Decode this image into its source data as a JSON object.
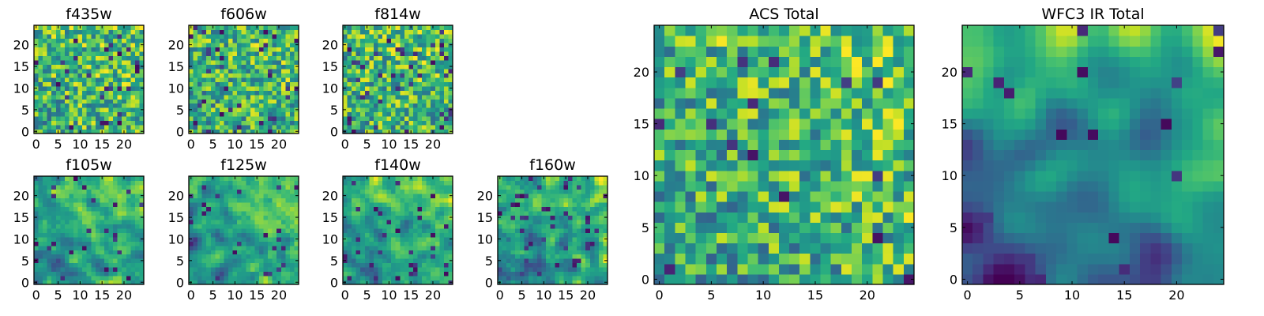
{
  "chart_data": [
    {
      "id": "f435w",
      "type": "heatmap",
      "title": "f435w",
      "group": "ACS",
      "size": 25,
      "x_ticks": [
        "0",
        "5",
        "10",
        "15",
        "20"
      ],
      "y_ticks": [
        "0",
        "5",
        "10",
        "15",
        "20"
      ],
      "value_range": [
        0,
        1
      ],
      "pattern": "random-noise",
      "noise_scale": "fine",
      "mean_level": 0.68,
      "gradient_to_upper_right": 0.05,
      "dark_pixel_rate": 0.04,
      "seed": 435
    },
    {
      "id": "f606w",
      "type": "heatmap",
      "title": "f606w",
      "group": "ACS",
      "size": 25,
      "x_ticks": [
        "0",
        "5",
        "10",
        "15",
        "20"
      ],
      "y_ticks": [
        "0",
        "5",
        "10",
        "15",
        "20"
      ],
      "value_range": [
        0,
        1
      ],
      "pattern": "random-noise",
      "noise_scale": "fine",
      "mean_level": 0.66,
      "gradient_to_upper_right": 0.06,
      "dark_pixel_rate": 0.05,
      "seed": 606
    },
    {
      "id": "f814w",
      "type": "heatmap",
      "title": "f814w",
      "group": "ACS",
      "size": 25,
      "x_ticks": [
        "0",
        "5",
        "10",
        "15",
        "20"
      ],
      "y_ticks": [
        "0",
        "5",
        "10",
        "15",
        "20"
      ],
      "value_range": [
        0,
        1
      ],
      "pattern": "random-noise",
      "noise_scale": "fine",
      "mean_level": 0.67,
      "gradient_to_upper_right": 0.06,
      "dark_pixel_rate": 0.05,
      "seed": 814
    },
    {
      "id": "f105w",
      "type": "heatmap",
      "title": "f105w",
      "group": "WFC3 IR",
      "size": 25,
      "x_ticks": [
        "0",
        "5",
        "10",
        "15",
        "20"
      ],
      "y_ticks": [
        "0",
        "5",
        "10",
        "15",
        "20"
      ],
      "value_range": [
        0,
        1
      ],
      "pattern": "smoothed-noise",
      "noise_scale": "medium",
      "mean_level": 0.62,
      "gradient_to_upper_right": 0.14,
      "dark_pixel_rate": 0.04,
      "seed": 105
    },
    {
      "id": "f125w",
      "type": "heatmap",
      "title": "f125w",
      "group": "WFC3 IR",
      "size": 25,
      "x_ticks": [
        "0",
        "5",
        "10",
        "15",
        "20"
      ],
      "y_ticks": [
        "0",
        "5",
        "10",
        "15",
        "20"
      ],
      "value_range": [
        0,
        1
      ],
      "pattern": "smoothed-noise",
      "noise_scale": "medium",
      "mean_level": 0.63,
      "gradient_to_upper_right": 0.17,
      "dark_pixel_rate": 0.04,
      "seed": 125
    },
    {
      "id": "f140w",
      "type": "heatmap",
      "title": "f140w",
      "group": "WFC3 IR",
      "size": 25,
      "x_ticks": [
        "0",
        "5",
        "10",
        "15",
        "20"
      ],
      "y_ticks": [
        "0",
        "5",
        "10",
        "15",
        "20"
      ],
      "value_range": [
        0,
        1
      ],
      "pattern": "smoothed-noise",
      "noise_scale": "medium",
      "mean_level": 0.62,
      "gradient_to_upper_right": 0.17,
      "dark_pixel_rate": 0.05,
      "seed": 140
    },
    {
      "id": "f160w",
      "type": "heatmap",
      "title": "f160w",
      "group": "WFC3 IR",
      "size": 25,
      "x_ticks": [
        "0",
        "5",
        "10",
        "15",
        "20"
      ],
      "y_ticks": [
        "0",
        "5",
        "10",
        "15",
        "20"
      ],
      "value_range": [
        0,
        1
      ],
      "pattern": "smoothed-noise",
      "noise_scale": "medium",
      "mean_level": 0.62,
      "gradient_to_upper_right": 0.22,
      "dark_pixel_rate": 0.05,
      "seed": 160
    },
    {
      "id": "acs-total",
      "type": "heatmap",
      "title": "ACS Total",
      "group": "Total",
      "size": 25,
      "x_ticks": [
        "0",
        "5",
        "10",
        "15",
        "20"
      ],
      "y_ticks": [
        "0",
        "5",
        "10",
        "15",
        "20"
      ],
      "value_range": [
        0,
        1
      ],
      "pattern": "random-noise",
      "noise_scale": "fine",
      "mean_level": 0.66,
      "gradient_to_upper_right": 0.1,
      "dark_pixel_rate": 0.02,
      "seed": 2001
    },
    {
      "id": "wfc3-ir-total",
      "type": "heatmap",
      "title": "WFC3 IR Total",
      "group": "Total",
      "size": 25,
      "x_ticks": [
        "0",
        "5",
        "10",
        "15",
        "20"
      ],
      "y_ticks": [
        "0",
        "5",
        "10",
        "15",
        "20"
      ],
      "value_range": [
        0,
        1
      ],
      "pattern": "smoothed-noise",
      "noise_scale": "coarse",
      "mean_level": 0.5,
      "gradient_to_upper_right": 0.32,
      "dark_pixel_rate": 0.02,
      "seed": 3001
    }
  ],
  "colormap": {
    "name": "viridis",
    "stops": [
      "#440154",
      "#482475",
      "#414487",
      "#355f8d",
      "#2a788e",
      "#21918c",
      "#22a884",
      "#44bf70",
      "#7ad151",
      "#bddf26",
      "#fde725"
    ]
  }
}
